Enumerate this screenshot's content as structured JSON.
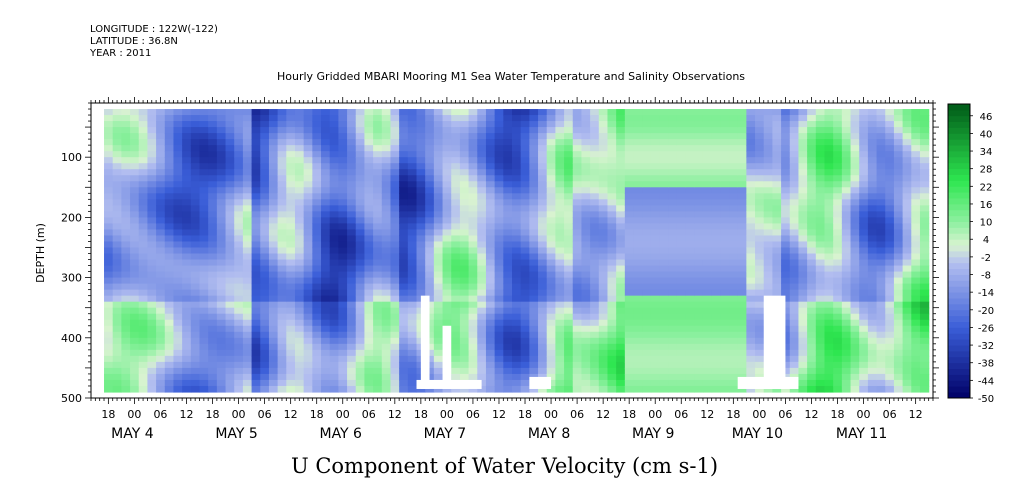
{
  "header": {
    "longitude": "LONGITUDE : 122W(-122)",
    "latitude": "LATITUDE : 36.8N",
    "year": "YEAR : 2011"
  },
  "title": "Hourly Gridded MBARI Mooring M1 Sea Water Temperature and Salinity Observations",
  "footer": "U Component of Water Velocity (cm s-1)",
  "colors": {
    "negative_dark": "#000066",
    "negative_mid": "#3a5ed8",
    "negative_light": "#b4bff0",
    "near_zero": "#d8f3d0",
    "positive_light": "#8df0a0",
    "positive_mid": "#2ee650",
    "positive_dark": "#005a18"
  },
  "chart_data": {
    "type": "heatmap",
    "title": "Hourly Gridded MBARI Mooring M1 Sea Water Temperature and Salinity Observations",
    "xlabel": "",
    "ylabel": "DEPTH (m)",
    "variable": "U Component of Water Velocity (cm s-1)",
    "x_range_hours": [
      "MAY 3 14:00",
      "MAY 11 16:00"
    ],
    "data_coverage": [
      "MAY 3 17:00",
      "MAY 11 14:00"
    ],
    "ylim": [
      500,
      10
    ],
    "y_axis_reversed": true,
    "y_ticks": [
      100,
      200,
      300,
      400,
      500
    ],
    "x_hour_labels": [
      "18",
      "00",
      "06",
      "12",
      "18",
      "00",
      "06",
      "12",
      "18",
      "00",
      "06",
      "12",
      "18",
      "00",
      "06",
      "12",
      "18",
      "00",
      "06",
      "12",
      "18",
      "00",
      "06",
      "12",
      "18",
      "00",
      "06",
      "12",
      "18",
      "00",
      "06",
      "12"
    ],
    "x_day_labels": [
      "MAY  4",
      "MAY  5",
      "MAY  6",
      "MAY  7",
      "MAY  8",
      "MAY  9",
      "MAY 10",
      "MAY 11"
    ],
    "colorbar": {
      "min": -50,
      "max": 50,
      "step": 2,
      "tick_labels": [
        "46",
        "40",
        "34",
        "28",
        "22",
        "16",
        "10",
        "4",
        "-2",
        "-8",
        "-14",
        "-20",
        "-26",
        "-32",
        "-38",
        "-44",
        "-50"
      ]
    }
  }
}
